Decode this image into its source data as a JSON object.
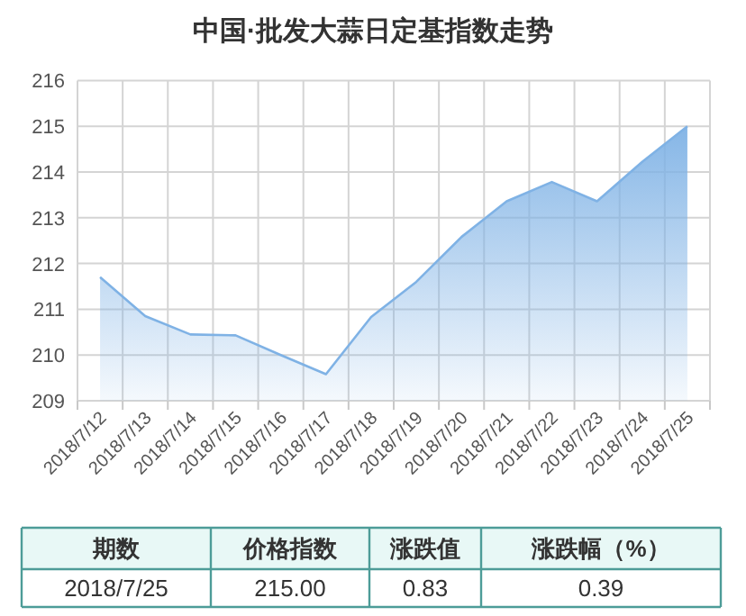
{
  "chart_data": {
    "type": "area",
    "title": "中国·批发大蒜日定基指数走势",
    "categories": [
      "2018/7/12",
      "2018/7/13",
      "2018/7/14",
      "2018/7/15",
      "2018/7/16",
      "2018/7/17",
      "2018/7/18",
      "2018/7/19",
      "2018/7/20",
      "2018/7/21",
      "2018/7/22",
      "2018/7/23",
      "2018/7/24",
      "2018/7/25"
    ],
    "series": [
      {
        "color": "#7fb2e5",
        "values": [
          211.7,
          210.85,
          210.45,
          210.43,
          210.0,
          209.58,
          210.83,
          211.6,
          212.58,
          213.36,
          213.78,
          213.36,
          214.22,
          215.0
        ]
      }
    ],
    "ylim": [
      209,
      216
    ],
    "yticks": [
      209,
      210,
      211,
      212,
      213,
      214,
      215,
      216
    ],
    "grid": true,
    "annotations": [
      "期数",
      "价格指数",
      "涨跌值",
      "涨跌幅（%）",
      "2018/7/25",
      "215.00",
      "0.83",
      "0.39"
    ]
  }
}
